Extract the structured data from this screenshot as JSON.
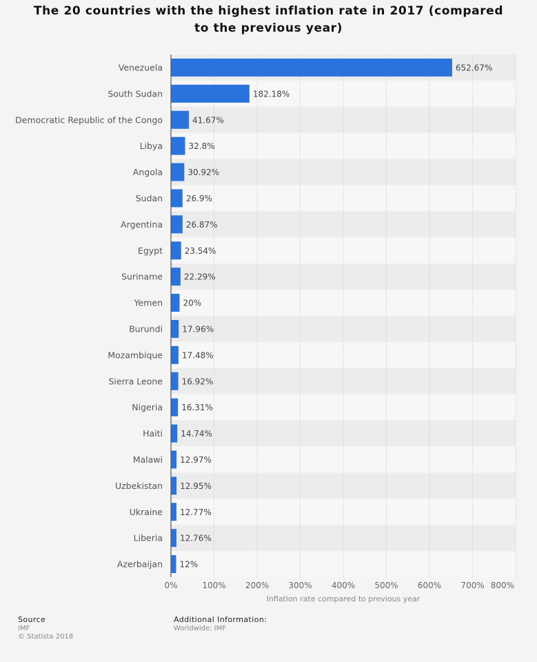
{
  "page": {
    "title": "The 20 countries with the highest inflation rate in 2017 (compared to the previous year)"
  },
  "chart_data": {
    "type": "bar",
    "orientation": "horizontal",
    "title": "The 20 countries with the highest inflation rate in 2017 (compared to the previous year)",
    "xlabel": "Inflation rate compared to previous year",
    "ylabel": "",
    "xlim": [
      0,
      800
    ],
    "x_ticks": [
      0,
      100,
      200,
      300,
      400,
      500,
      600,
      700,
      800
    ],
    "x_tick_labels": [
      "0%",
      "100%",
      "200%",
      "300%",
      "400%",
      "500%",
      "600%",
      "700%",
      "800%"
    ],
    "grid": true,
    "bar_color": "#2a73dc",
    "categories": [
      "Venezuela",
      "South Sudan",
      "Democratic Republic of the Congo",
      "Libya",
      "Angola",
      "Sudan",
      "Argentina",
      "Egypt",
      "Suriname",
      "Yemen",
      "Burundi",
      "Mozambique",
      "Sierra Leone",
      "Nigeria",
      "Haiti",
      "Malawi",
      "Uzbekistan",
      "Ukraine",
      "Liberia",
      "Azerbaijan"
    ],
    "values": [
      652.67,
      182.18,
      41.67,
      32.8,
      30.92,
      26.9,
      26.87,
      23.54,
      22.29,
      20,
      17.96,
      17.48,
      16.92,
      16.31,
      14.74,
      12.97,
      12.95,
      12.77,
      12.76,
      12
    ],
    "value_labels": [
      "652.67%",
      "182.18%",
      "41.67%",
      "32.8%",
      "30.92%",
      "26.9%",
      "26.87%",
      "23.54%",
      "22.29%",
      "20%",
      "17.96%",
      "17.48%",
      "16.92%",
      "16.31%",
      "14.74%",
      "12.97%",
      "12.95%",
      "12.77%",
      "12.76%",
      "12%"
    ]
  },
  "footer": {
    "source_heading": "Source",
    "source_text": "IMF",
    "copyright": "© Statista 2018",
    "additional_heading": "Additional Information:",
    "additional_text": "Worldwide; IMF"
  }
}
